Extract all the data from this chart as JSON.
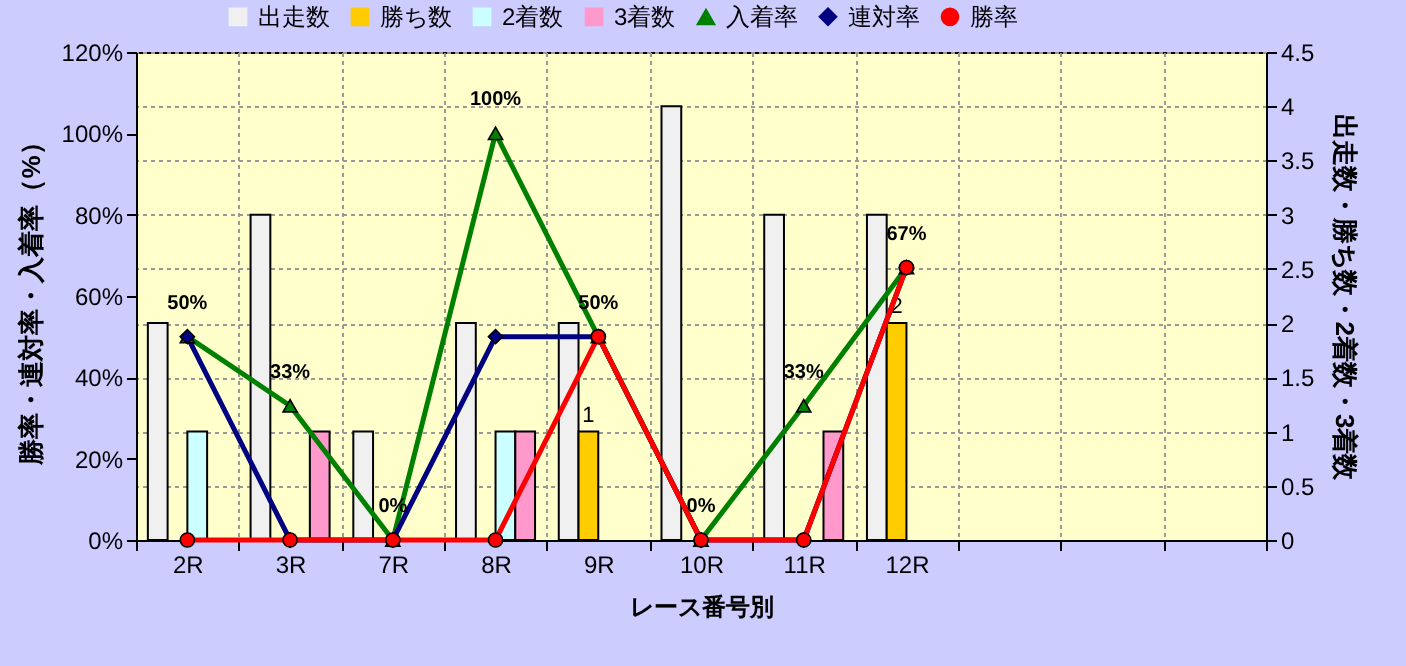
{
  "chart_data": {
    "type": "bar",
    "xlabel": "レース番号別",
    "ylabel": "勝率・連対率・入着率（%）",
    "y2label": "出走数・勝ち数・2着数・3着数",
    "categories": [
      "2R",
      "3R",
      "7R",
      "8R",
      "9R",
      "10R",
      "11R",
      "12R",
      null,
      null,
      null
    ],
    "series": [
      {
        "name": "出走数",
        "axis": "y2",
        "color": "#f0f0f0",
        "values": [
          2,
          3,
          1,
          2,
          2,
          4,
          3,
          3,
          null,
          null,
          null
        ]
      },
      {
        "name": "勝ち数",
        "axis": "y2",
        "color": "#ffcc00",
        "values": [
          0,
          0,
          0,
          0,
          1,
          0,
          0,
          2,
          null,
          null,
          null
        ],
        "value_labels": [
          null,
          null,
          null,
          null,
          "1",
          null,
          null,
          "2",
          null,
          null,
          null
        ]
      },
      {
        "name": "2着数",
        "axis": "y2",
        "color": "#ccffff",
        "values": [
          1,
          0,
          0,
          1,
          0,
          0,
          0,
          0,
          null,
          null,
          null
        ]
      },
      {
        "name": "3着数",
        "axis": "y2",
        "color": "#ff99cc",
        "values": [
          0,
          1,
          0,
          1,
          0,
          0,
          1,
          0,
          null,
          null,
          null
        ]
      },
      {
        "name": "入着率",
        "type": "line",
        "axis": "y",
        "color": "#008000",
        "marker": "triangle",
        "values": [
          50,
          33,
          0,
          100,
          50,
          0,
          33,
          67,
          null,
          null,
          null
        ],
        "value_labels": [
          "50%",
          "33%",
          "0%",
          "100%",
          "50%",
          "0%",
          "33%",
          "67%",
          null,
          null,
          null
        ]
      },
      {
        "name": "連対率",
        "type": "line",
        "axis": "y",
        "color": "#000080",
        "marker": "diamond",
        "values": [
          50,
          0,
          0,
          50,
          50,
          0,
          0,
          67,
          null,
          null,
          null
        ]
      },
      {
        "name": "勝率",
        "type": "line",
        "axis": "y",
        "color": "#ff0000",
        "marker": "circle",
        "values": [
          0,
          0,
          0,
          0,
          50,
          0,
          0,
          67,
          null,
          null,
          null
        ]
      }
    ],
    "ylim": [
      0,
      120
    ],
    "yticks": [
      {
        "value": 0,
        "label": "0%"
      },
      {
        "value": 20,
        "label": "20%"
      },
      {
        "value": 40,
        "label": "40%"
      },
      {
        "value": 60,
        "label": "60%"
      },
      {
        "value": 80,
        "label": "80%"
      },
      {
        "value": 100,
        "label": "100%"
      },
      {
        "value": 120,
        "label": "120%"
      }
    ],
    "y2lim": [
      0,
      4.5
    ],
    "y2ticks": [
      0,
      0.5,
      1,
      1.5,
      2,
      2.5,
      3,
      3.5,
      4,
      4.5
    ],
    "grid": true,
    "legend": "top"
  }
}
